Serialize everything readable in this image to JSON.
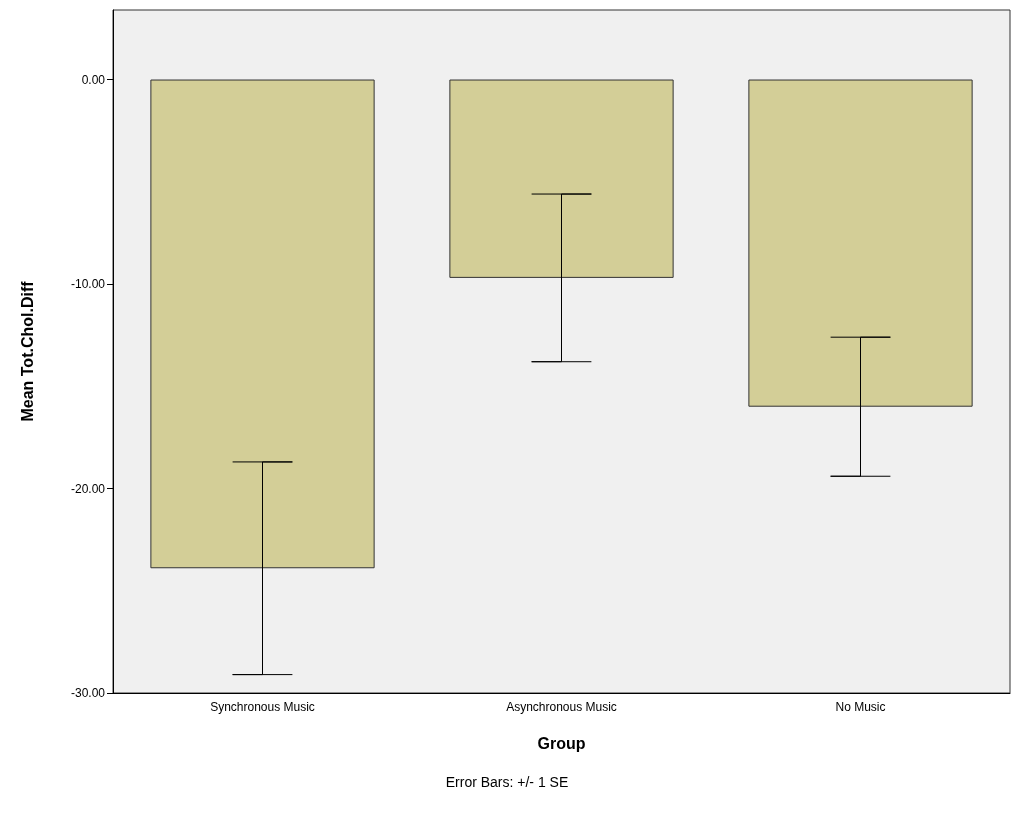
{
  "chart_data": {
    "type": "bar",
    "xlabel": "Group",
    "ylabel": "Mean Tot.Chol.Diff",
    "categories": [
      "Synchronous Music",
      "Asynchronous Music",
      "No Music"
    ],
    "values": [
      -23.9,
      -9.7,
      -16.0
    ],
    "errors": [
      5.2,
      4.1,
      3.4
    ],
    "color": "#d3ce97",
    "ylim": [
      -30,
      3.4
    ],
    "yticks": [
      {
        "value": 0,
        "label": "0.00"
      },
      {
        "value": -10,
        "label": "-10.00"
      },
      {
        "value": -20,
        "label": "-20.00"
      },
      {
        "value": -30,
        "label": "-30.00"
      }
    ],
    "grid": false,
    "annotations": [
      "Error Bars: +/- 1 SE"
    ]
  }
}
